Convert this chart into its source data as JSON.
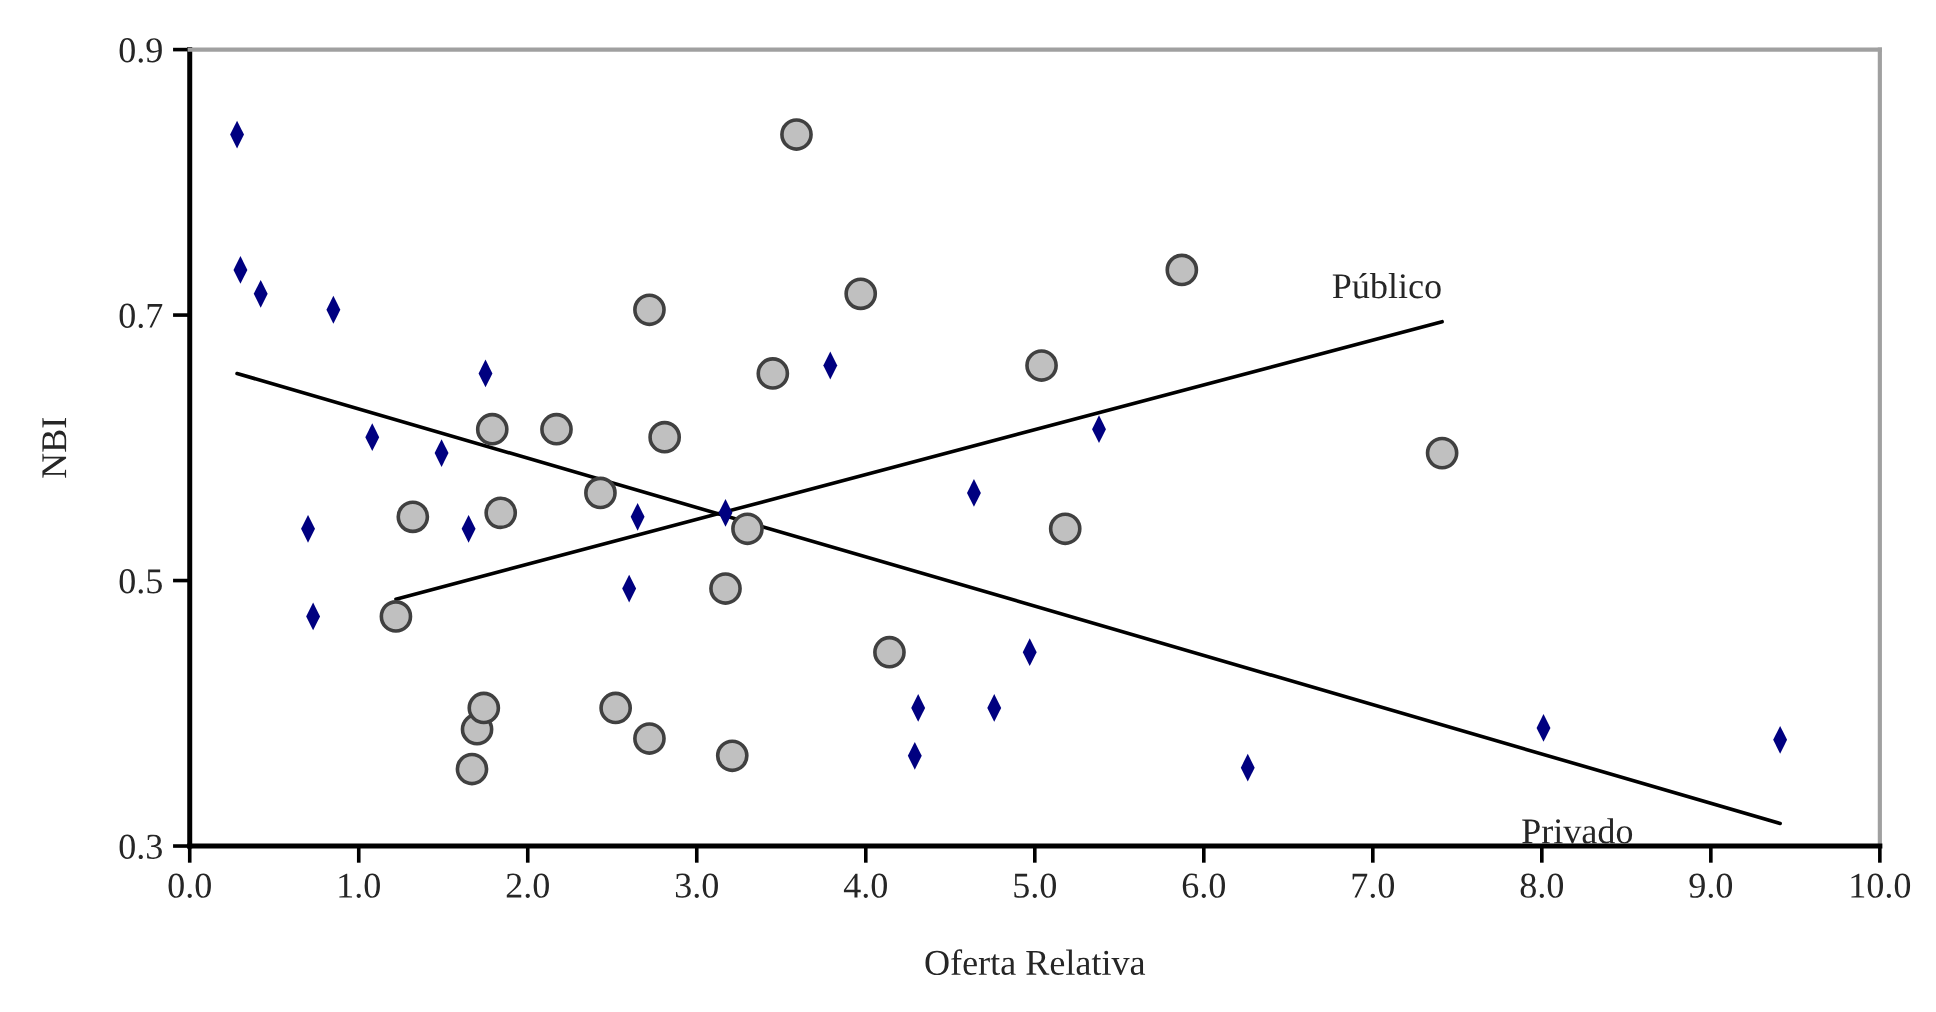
{
  "chart_data": {
    "type": "scatter",
    "xlabel": "Oferta Relativa",
    "ylabel": "NBI",
    "xlim": [
      0,
      10
    ],
    "ylim": [
      0.3,
      0.9
    ],
    "xticks": [
      {
        "value": 0,
        "label": "0.0"
      },
      {
        "value": 1,
        "label": "1.0"
      },
      {
        "value": 2,
        "label": "2.0"
      },
      {
        "value": 3,
        "label": "3.0"
      },
      {
        "value": 4,
        "label": "4.0"
      },
      {
        "value": 5,
        "label": "5.0"
      },
      {
        "value": 6,
        "label": "6.0"
      },
      {
        "value": 7,
        "label": "7.0"
      },
      {
        "value": 8,
        "label": "8.0"
      },
      {
        "value": 9,
        "label": "9.0"
      },
      {
        "value": 10,
        "label": "10.0"
      }
    ],
    "yticks": [
      0.3,
      0.5,
      0.7,
      0.9
    ],
    "grid": false,
    "legend": false,
    "series": [
      {
        "marker": "circle",
        "color": "#c0c0c0",
        "x": [
          1.22,
          1.32,
          1.67,
          1.7,
          1.74,
          1.79,
          1.84,
          2.17,
          2.43,
          2.52,
          2.72,
          2.72,
          2.81,
          3.17,
          3.21,
          3.59,
          3.97,
          3.45,
          3.3,
          4.14,
          5.04,
          5.18,
          5.87,
          7.41
        ],
        "values": [
          0.473,
          0.548,
          0.358,
          0.388,
          0.404,
          0.614,
          0.551,
          0.614,
          0.566,
          0.404,
          0.704,
          0.381,
          0.608,
          0.494,
          0.368,
          0.836,
          0.716,
          0.656,
          0.539,
          0.446,
          0.662,
          0.539,
          0.734,
          0.596
        ]
      },
      {
        "marker": "diamond",
        "color": "#000080",
        "x": [
          0.28,
          0.3,
          0.42,
          0.85,
          1.75,
          1.08,
          1.49,
          0.7,
          1.65,
          0.73,
          2.65,
          2.6,
          3.17,
          3.79,
          5.38,
          4.64,
          4.97,
          4.31,
          4.76,
          4.29,
          6.26,
          8.01,
          9.41
        ],
        "values": [
          0.836,
          0.734,
          0.716,
          0.704,
          0.656,
          0.608,
          0.596,
          0.539,
          0.539,
          0.473,
          0.548,
          0.494,
          0.551,
          0.662,
          0.614,
          0.566,
          0.446,
          0.404,
          0.404,
          0.368,
          0.359,
          0.389,
          0.38
        ]
      },
      {
        "type": "line",
        "name": "Público",
        "color": "#000000",
        "x": [
          1.22,
          7.41
        ],
        "values": [
          0.486,
          0.695
        ]
      },
      {
        "type": "line",
        "name": "Privado",
        "color": "#000000",
        "x": [
          0.28,
          9.41
        ],
        "values": [
          0.656,
          0.317
        ]
      }
    ]
  }
}
